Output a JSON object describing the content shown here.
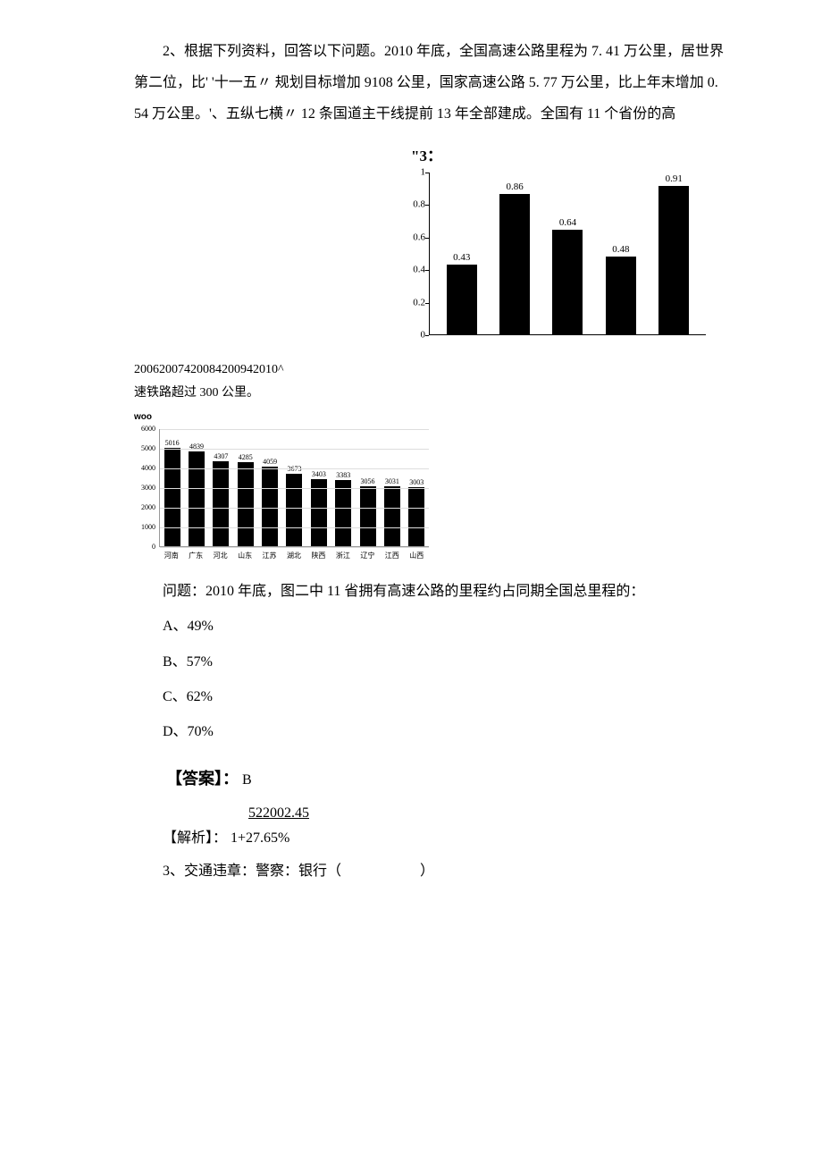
{
  "q2": {
    "prompt": "2、根据下列资料，回答以下问题。2010 年底，全国高速公路里程为 7. 41 万公里，居世界第二位，比' '十一五〃 规划目标增加 9108 公里，国家高速公路 5. 77 万公里，比上年末增加 0. 54 万公里。'、五纵七横〃 12 条国道主干线提前 13 年全部建成。全国有 11 个省份的高",
    "chart1_title": "\"3：",
    "chart1": {
      "type": "bar",
      "categories": [
        "2006",
        "2007",
        "2008",
        "2009",
        "2010"
      ],
      "values": [
        0.43,
        0.86,
        0.64,
        0.48,
        0.91
      ],
      "bar_color": "#000000",
      "ylim": [
        0,
        1
      ],
      "yticks": [
        0,
        0.2,
        0.4,
        0.6,
        0.8,
        1
      ],
      "label_fontsize": 11,
      "background": "#ffffff"
    },
    "mid_caption": "20062007420084200942010^",
    "mid_caption2": "速铁路超过 300 公里。",
    "chart2_prefix": "woo",
    "chart2": {
      "type": "bar",
      "categories": [
        "河南",
        "广东",
        "河北",
        "山东",
        "江苏",
        "湖北",
        "陕西",
        "浙江",
        "辽宁",
        "江西",
        "山西"
      ],
      "values": [
        5016,
        4839,
        4307,
        4285,
        4059,
        3673,
        3403,
        3383,
        3056,
        3031,
        3003
      ],
      "bar_color": "#000000",
      "ylim": [
        0,
        6000
      ],
      "yticks": [
        0,
        1000,
        2000,
        3000,
        4000,
        5000,
        6000
      ],
      "label_fontsize": 8,
      "background": "#ffffff"
    },
    "question": "问题：2010 年底，图二中 11 省拥有高速公路的里程约占同期全国总里程的：",
    "options": {
      "A": "A、49%",
      "B": "B、57%",
      "C": "C、62%",
      "D": "D、70%"
    },
    "answer_label": "【答案】：",
    "answer_value": "B",
    "explain_numerator": "522002.45",
    "explain_label": "【解析】：",
    "explain_denom": "1+27.65%"
  },
  "q3": {
    "prompt": "3、交通违章：警察：银行（",
    "suffix": "）"
  }
}
